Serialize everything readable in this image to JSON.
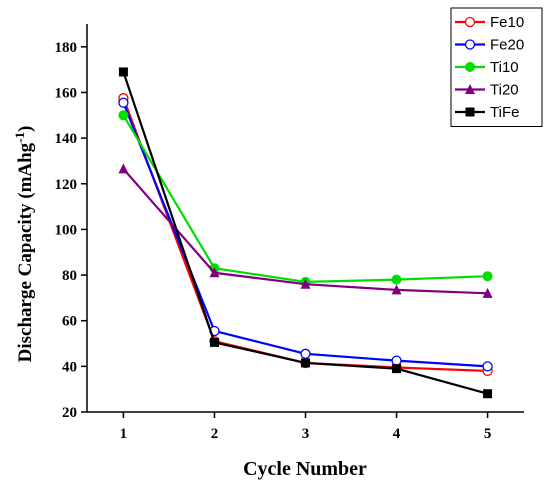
{
  "chart_data": {
    "type": "line",
    "title": "",
    "xlabel": "Cycle Number",
    "ylabel": {
      "prefix": "Discharge Capacity (mAhg",
      "superscript": "-1",
      "suffix": ")"
    },
    "x": [
      1,
      2,
      3,
      4,
      5
    ],
    "xlim": [
      0.6,
      5.4
    ],
    "ylim": [
      20,
      190
    ],
    "xticks": [
      1,
      2,
      3,
      4,
      5
    ],
    "yticks": [
      20,
      40,
      60,
      80,
      100,
      120,
      140,
      160,
      180
    ],
    "grid": false,
    "legend_position": "top-right",
    "series": [
      {
        "name": "Fe10",
        "color": "#ff0000",
        "marker": "circle-open",
        "values": [
          157.5,
          51,
          41.5,
          39.5,
          38
        ]
      },
      {
        "name": "Fe20",
        "color": "#0000ff",
        "marker": "circle-open",
        "values": [
          155.5,
          55.5,
          45.5,
          42.5,
          40
        ]
      },
      {
        "name": "Ti10",
        "color": "#00dd00",
        "marker": "circle-filled",
        "values": [
          150,
          83,
          77,
          78,
          79.5
        ]
      },
      {
        "name": "Ti20",
        "color": "#800080",
        "marker": "triangle-filled",
        "values": [
          126.5,
          81,
          76,
          73.5,
          72
        ]
      },
      {
        "name": "TiFe",
        "color": "#000000",
        "marker": "square-filled",
        "values": [
          169,
          50.5,
          41.5,
          39,
          28
        ]
      }
    ]
  }
}
